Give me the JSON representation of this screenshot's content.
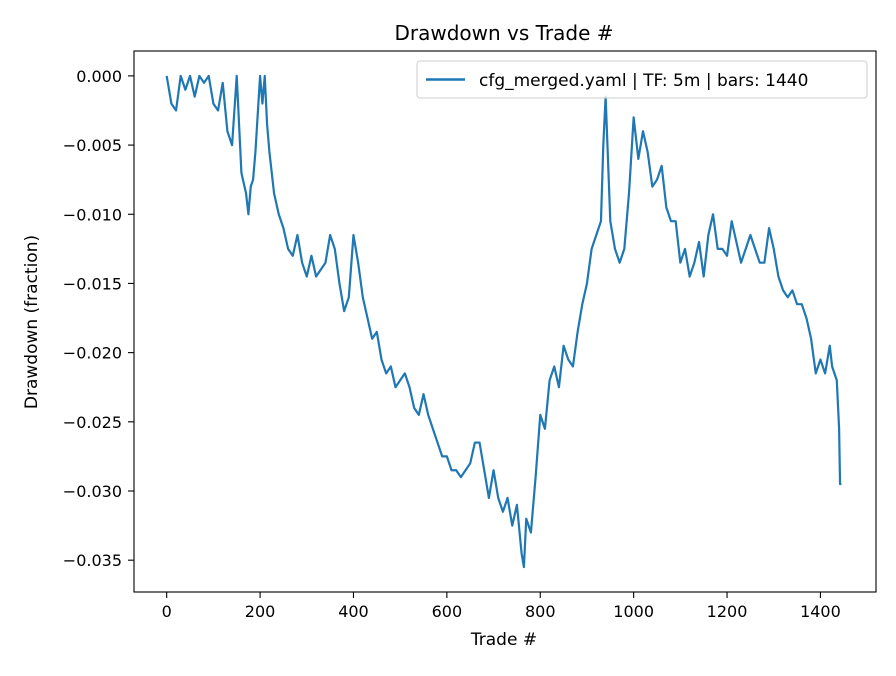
{
  "chart_data": {
    "type": "line",
    "title": "Drawdown vs Trade #",
    "xlabel": "Trade #",
    "ylabel": "Drawdown (fraction)",
    "xlim": [
      -70,
      1519
    ],
    "ylim": [
      -0.0373,
      0.0018
    ],
    "x_ticks": [
      0,
      200,
      400,
      600,
      800,
      1000,
      1200,
      1400
    ],
    "x_tick_labels": [
      "0",
      "200",
      "400",
      "600",
      "800",
      "1000",
      "1200",
      "1400"
    ],
    "y_ticks": [
      0.0,
      -0.005,
      -0.01,
      -0.015,
      -0.02,
      -0.025,
      -0.03,
      -0.035
    ],
    "y_tick_labels": [
      "0.000",
      "−0.005",
      "−0.010",
      "−0.015",
      "−0.020",
      "−0.025",
      "−0.030",
      "−0.035"
    ],
    "grid": false,
    "legend_position": "upper right",
    "color": "#1f77b4",
    "series": [
      {
        "name": "cfg_merged.yaml | TF: 5m | bars: 1440",
        "x": [
          0,
          10,
          20,
          30,
          40,
          50,
          60,
          70,
          80,
          90,
          100,
          110,
          120,
          130,
          140,
          150,
          160,
          170,
          175,
          180,
          185,
          190,
          200,
          205,
          210,
          215,
          220,
          225,
          230,
          240,
          250,
          260,
          270,
          280,
          290,
          300,
          310,
          320,
          330,
          340,
          350,
          360,
          370,
          380,
          390,
          400,
          410,
          420,
          430,
          440,
          450,
          460,
          470,
          480,
          490,
          500,
          510,
          520,
          530,
          540,
          550,
          560,
          570,
          580,
          590,
          600,
          610,
          620,
          630,
          640,
          650,
          660,
          670,
          680,
          690,
          700,
          710,
          720,
          730,
          740,
          750,
          760,
          765,
          770,
          780,
          790,
          800,
          810,
          820,
          830,
          840,
          850,
          860,
          870,
          880,
          890,
          900,
          910,
          920,
          930,
          935,
          940,
          950,
          960,
          970,
          980,
          990,
          1000,
          1010,
          1020,
          1030,
          1040,
          1050,
          1060,
          1070,
          1080,
          1090,
          1100,
          1110,
          1120,
          1130,
          1140,
          1150,
          1160,
          1170,
          1180,
          1190,
          1200,
          1210,
          1220,
          1230,
          1240,
          1250,
          1260,
          1270,
          1280,
          1290,
          1300,
          1310,
          1320,
          1330,
          1340,
          1350,
          1360,
          1370,
          1380,
          1390,
          1400,
          1410,
          1420,
          1425,
          1430,
          1435,
          1440,
          1442,
          1445
        ],
        "y": [
          0.0,
          -0.002,
          -0.0025,
          0.0,
          -0.001,
          0.0,
          -0.0015,
          0.0,
          -0.0005,
          0.0,
          -0.002,
          -0.0025,
          -0.0005,
          -0.004,
          -0.005,
          0.0,
          -0.007,
          -0.0085,
          -0.01,
          -0.008,
          -0.0075,
          -0.0055,
          0.0,
          -0.002,
          0.0,
          -0.0035,
          -0.0055,
          -0.007,
          -0.0085,
          -0.01,
          -0.011,
          -0.0125,
          -0.013,
          -0.0115,
          -0.0135,
          -0.0145,
          -0.013,
          -0.0145,
          -0.014,
          -0.0135,
          -0.0115,
          -0.0125,
          -0.015,
          -0.017,
          -0.016,
          -0.0115,
          -0.0135,
          -0.016,
          -0.0175,
          -0.019,
          -0.0185,
          -0.0205,
          -0.0215,
          -0.021,
          -0.0225,
          -0.022,
          -0.0215,
          -0.0225,
          -0.024,
          -0.0245,
          -0.023,
          -0.0245,
          -0.0255,
          -0.0265,
          -0.0275,
          -0.0275,
          -0.0285,
          -0.0285,
          -0.029,
          -0.0285,
          -0.028,
          -0.0265,
          -0.0265,
          -0.0285,
          -0.0305,
          -0.0285,
          -0.0305,
          -0.0315,
          -0.0305,
          -0.0325,
          -0.031,
          -0.0345,
          -0.0355,
          -0.032,
          -0.033,
          -0.029,
          -0.0245,
          -0.0255,
          -0.022,
          -0.021,
          -0.0225,
          -0.0195,
          -0.0205,
          -0.021,
          -0.0185,
          -0.0165,
          -0.015,
          -0.0125,
          -0.0115,
          -0.0105,
          -0.005,
          -0.0015,
          -0.0105,
          -0.0125,
          -0.0135,
          -0.0125,
          -0.0085,
          -0.003,
          -0.006,
          -0.004,
          -0.0055,
          -0.008,
          -0.0075,
          -0.0065,
          -0.0095,
          -0.0105,
          -0.0105,
          -0.0135,
          -0.0125,
          -0.0145,
          -0.0135,
          -0.012,
          -0.0145,
          -0.0115,
          -0.01,
          -0.0125,
          -0.0125,
          -0.013,
          -0.0105,
          -0.012,
          -0.0135,
          -0.0125,
          -0.0115,
          -0.0125,
          -0.0135,
          -0.0135,
          -0.011,
          -0.0125,
          -0.0145,
          -0.0155,
          -0.016,
          -0.0155,
          -0.0165,
          -0.0165,
          -0.0175,
          -0.019,
          -0.0215,
          -0.0205,
          -0.0215,
          -0.0195,
          -0.021,
          -0.0215,
          -0.022,
          -0.0255,
          -0.0295,
          -0.0295
        ]
      }
    ]
  }
}
